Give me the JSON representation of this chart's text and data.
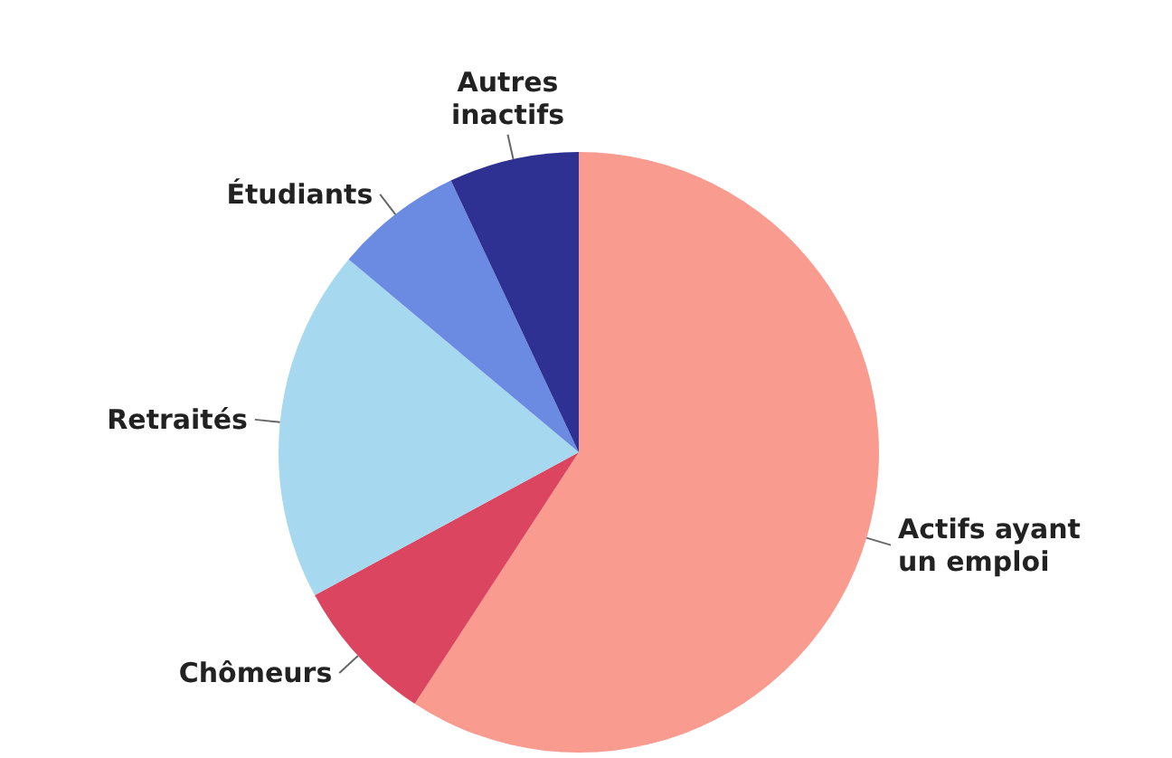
{
  "chart_data": {
    "type": "pie",
    "categories": [
      "Actifs ayant un emploi",
      "Chômeurs",
      "Retraités",
      "Étudiants",
      "Autres inactifs"
    ],
    "values": [
      59.2,
      7.9,
      19,
      6.9,
      7
    ],
    "colors": [
      "#f99b8e",
      "#dc4560",
      "#a6d8ef",
      "#6b8be3",
      "#2e3192"
    ]
  }
}
